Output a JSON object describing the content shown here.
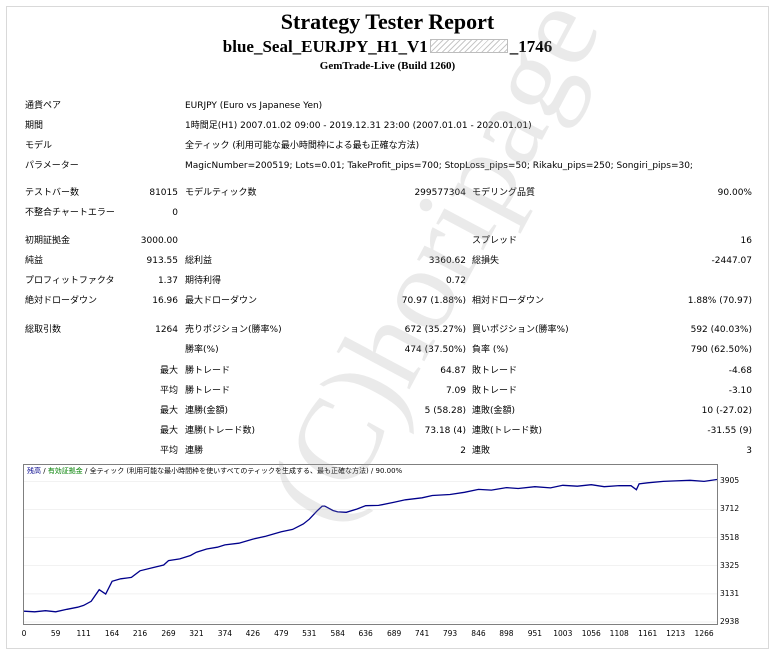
{
  "header": {
    "title": "Strategy Tester Report",
    "subtitle_pre": "blue_Seal_EURJPY_H1_V1",
    "subtitle_post": "_1746",
    "build": "GemTrade-Live (Build 1260)"
  },
  "info": [
    {
      "label": "通貨ペア",
      "value": "EURJPY (Euro vs Japanese Yen)"
    },
    {
      "label": "期間",
      "value": "1時間足(H1) 2007.01.02 09:00 - 2019.12.31 23:00 (2007.01.01 - 2020.01.01)"
    },
    {
      "label": "モデル",
      "value": "全ティック (利用可能な最小時間枠による最も正確な方法)"
    },
    {
      "label": "パラメーター",
      "value": "MagicNumber=200519; Lots=0.01; TakeProfit_pips=700; StopLoss_pips=50; Rikaku_pips=250; Songiri_pips=30;"
    }
  ],
  "stats": {
    "bars_label": "テストバー数",
    "bars": "81015",
    "ticks_label": "モデルティック数",
    "ticks": "299577304",
    "quality_label": "モデリング品質",
    "quality": "90.00%",
    "mismatch_label": "不整合チャートエラー",
    "mismatch": "0",
    "deposit_label": "初期証拠金",
    "deposit": "3000.00",
    "spread_label": "スプレッド",
    "spread": "16",
    "net_label": "純益",
    "net": "913.55",
    "gross_profit_label": "総利益",
    "gross_profit": "3360.62",
    "gross_loss_label": "総損失",
    "gross_loss": "-2447.07",
    "pf_label": "プロフィットファクタ",
    "pf": "1.37",
    "expected_label": "期待利得",
    "expected": "0.72",
    "abs_dd_label": "絶対ドローダウン",
    "abs_dd": "16.96",
    "max_dd_label": "最大ドローダウン",
    "max_dd": "70.97 (1.88%)",
    "rel_dd_label": "相対ドローダウン",
    "rel_dd": "1.88% (70.97)",
    "total_trades_label": "総取引数",
    "total_trades": "1264",
    "short_label": "売りポジション(勝率%)",
    "short": "672 (35.27%)",
    "long_label": "買いポジション(勝率%)",
    "long": "592 (40.03%)",
    "win_pct_label": "勝率(%)",
    "win_pct": "474 (37.50%)",
    "loss_pct_label": "負率 (%)",
    "loss_pct": "790 (62.50%)",
    "max_word": "最大",
    "avg_word": "平均",
    "largest_win_label": "勝トレード",
    "largest_win": "64.87",
    "largest_loss_label": "敗トレード",
    "largest_loss": "-4.68",
    "avg_win_label": "勝トレード",
    "avg_win": "7.09",
    "avg_loss_label": "敗トレード",
    "avg_loss": "-3.10",
    "max_cons_wins_label": "連勝(金額)",
    "max_cons_wins": "5 (58.28)",
    "max_cons_losses_label": "連敗(金額)",
    "max_cons_losses": "10 (-27.02)",
    "max_cons_profit_label": "連勝(トレード数)",
    "max_cons_profit": "73.18 (4)",
    "max_cons_loss_label": "連敗(トレード数)",
    "max_cons_loss": "-31.55 (9)",
    "avg_cons_wins_label": "連勝",
    "avg_cons_wins": "2",
    "avg_cons_losses_label": "連敗",
    "avg_cons_losses": "3"
  },
  "chart_legend": {
    "balance": "残高",
    "margin": "有効証拠金",
    "model": "全ティック (利用可能な最小時間枠を使いすべてのティックを生成する、最も正確な方法)",
    "quality": "90.00%"
  },
  "watermark": "(C)horipage",
  "chart_data": {
    "type": "line",
    "title": "",
    "xlabel": "",
    "ylabel": "",
    "x_ticks": [
      "0",
      "59",
      "111",
      "164",
      "216",
      "269",
      "321",
      "374",
      "426",
      "479",
      "531",
      "584",
      "636",
      "689",
      "741",
      "793",
      "846",
      "898",
      "951",
      "1003",
      "1056",
      "1108",
      "1161",
      "1213",
      "1266"
    ],
    "y_ticks": [
      "3905",
      "3712",
      "3518",
      "3325",
      "3131",
      "2938"
    ],
    "xlim": [
      0,
      1290
    ],
    "ylim": [
      2938,
      3935
    ],
    "series": [
      {
        "color": "#00008b",
        "x": [
          0,
          20,
          40,
          59,
          80,
          100,
          111,
          125,
          140,
          152,
          164,
          180,
          200,
          216,
          240,
          260,
          269,
          290,
          310,
          321,
          340,
          360,
          374,
          400,
          426,
          450,
          479,
          500,
          520,
          531,
          545,
          555,
          560,
          575,
          584,
          600,
          620,
          636,
          660,
          689,
          710,
          741,
          760,
          793,
          820,
          846,
          870,
          898,
          920,
          951,
          980,
          1003,
          1030,
          1056,
          1080,
          1108,
          1130,
          1140,
          1145,
          1161,
          1190,
          1213,
          1240,
          1266,
          1290
        ],
        "y": [
          3012,
          3008,
          3016,
          3008,
          3025,
          3040,
          3052,
          3080,
          3160,
          3130,
          3218,
          3235,
          3245,
          3290,
          3312,
          3330,
          3360,
          3372,
          3395,
          3418,
          3440,
          3452,
          3468,
          3480,
          3508,
          3528,
          3558,
          3575,
          3612,
          3645,
          3700,
          3735,
          3735,
          3705,
          3695,
          3692,
          3715,
          3738,
          3740,
          3762,
          3778,
          3792,
          3808,
          3815,
          3830,
          3850,
          3845,
          3862,
          3856,
          3868,
          3860,
          3878,
          3872,
          3882,
          3868,
          3876,
          3875,
          3848,
          3888,
          3895,
          3905,
          3908,
          3912,
          3905,
          3918
        ]
      }
    ]
  }
}
